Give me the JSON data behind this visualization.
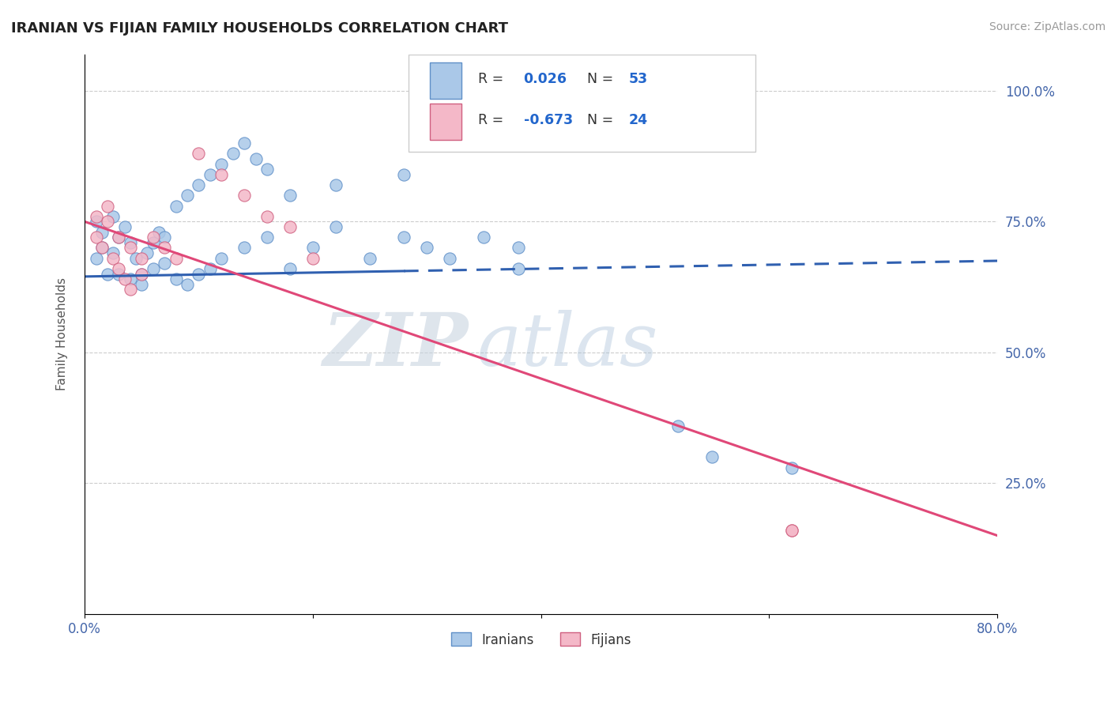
{
  "title": "IRANIAN VS FIJIAN FAMILY HOUSEHOLDS CORRELATION CHART",
  "source": "Source: ZipAtlas.com",
  "ylabel": "Family Households",
  "x_min": 0.0,
  "x_max": 80.0,
  "y_min": 0.0,
  "y_max": 107.0,
  "x_ticks": [
    0.0,
    20.0,
    40.0,
    60.0,
    80.0
  ],
  "x_tick_labels": [
    "0.0%",
    "",
    "",
    "",
    "80.0%"
  ],
  "y_ticks": [
    25.0,
    50.0,
    75.0,
    100.0
  ],
  "y_tick_labels": [
    "25.0%",
    "50.0%",
    "75.0%",
    "100.0%"
  ],
  "legend_label1": "Iranians",
  "legend_label2": "Fijians",
  "r1": "0.026",
  "n1": "53",
  "r2": "-0.673",
  "n2": "24",
  "blue_color": "#aac8e8",
  "pink_color": "#f4b8c8",
  "blue_line_color": "#3060b0",
  "pink_line_color": "#e04878",
  "blue_line_start_x": 0.0,
  "blue_line_start_y": 64.5,
  "blue_line_solid_end_x": 28.0,
  "blue_line_solid_end_y": 65.5,
  "blue_line_end_x": 80.0,
  "blue_line_end_y": 67.5,
  "pink_line_start_x": 0.0,
  "pink_line_start_y": 75.0,
  "pink_line_end_x": 80.0,
  "pink_line_end_y": 15.0,
  "blue_x": [
    1.0,
    1.5,
    2.0,
    2.5,
    1.0,
    1.5,
    2.5,
    3.0,
    3.5,
    4.0,
    4.5,
    5.0,
    5.5,
    6.0,
    6.5,
    7.0,
    8.0,
    9.0,
    10.0,
    11.0,
    12.0,
    13.0,
    14.0,
    15.0,
    16.0,
    3.0,
    4.0,
    5.0,
    6.0,
    7.0,
    8.0,
    9.0,
    10.0,
    11.0,
    12.0,
    14.0,
    16.0,
    18.0,
    20.0,
    22.0,
    25.0,
    28.0,
    30.0,
    32.0,
    35.0,
    38.0,
    18.0,
    22.0,
    28.0,
    38.0,
    52.0,
    55.0,
    62.0
  ],
  "blue_y": [
    68.0,
    70.0,
    65.0,
    69.0,
    75.0,
    73.0,
    76.0,
    72.0,
    74.0,
    71.0,
    68.0,
    65.0,
    69.0,
    71.0,
    73.0,
    72.0,
    78.0,
    80.0,
    82.0,
    84.0,
    86.0,
    88.0,
    90.0,
    87.0,
    85.0,
    65.0,
    64.0,
    63.0,
    66.0,
    67.0,
    64.0,
    63.0,
    65.0,
    66.0,
    68.0,
    70.0,
    72.0,
    66.0,
    70.0,
    74.0,
    68.0,
    72.0,
    70.0,
    68.0,
    72.0,
    70.0,
    80.0,
    82.0,
    84.0,
    66.0,
    36.0,
    30.0,
    28.0
  ],
  "pink_x": [
    1.0,
    1.5,
    2.0,
    2.5,
    3.0,
    3.5,
    4.0,
    5.0,
    1.0,
    2.0,
    3.0,
    4.0,
    5.0,
    6.0,
    7.0,
    8.0,
    10.0,
    12.0,
    14.0,
    16.0,
    18.0,
    20.0,
    62.0,
    62.0
  ],
  "pink_y": [
    72.0,
    70.0,
    75.0,
    68.0,
    66.0,
    64.0,
    62.0,
    65.0,
    76.0,
    78.0,
    72.0,
    70.0,
    68.0,
    72.0,
    70.0,
    68.0,
    88.0,
    84.0,
    80.0,
    76.0,
    74.0,
    68.0,
    16.0,
    16.0
  ],
  "watermark_zip": "ZIP",
  "watermark_atlas": "atlas"
}
